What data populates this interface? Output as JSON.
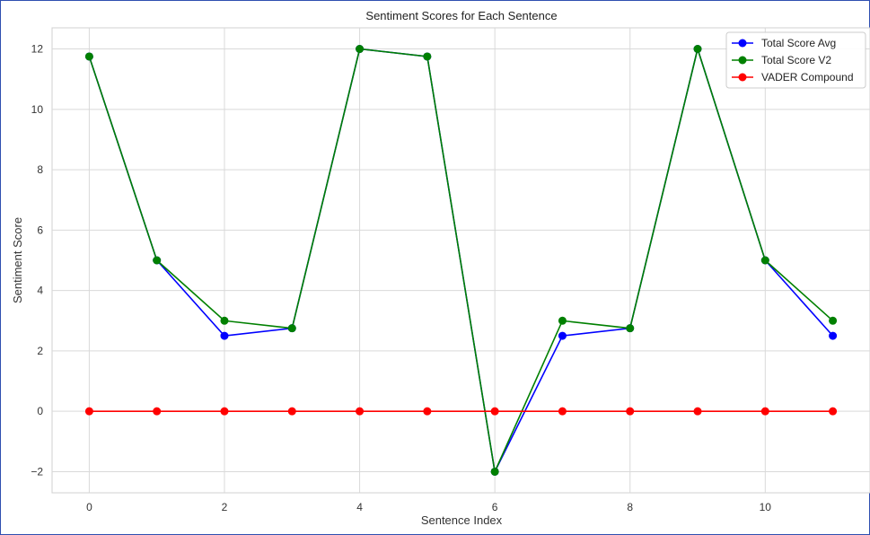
{
  "chart_data": {
    "type": "line",
    "title": "Sentiment Scores for Each Sentence",
    "xlabel": "Sentence Index",
    "ylabel": "Sentiment Score",
    "x": [
      0,
      1,
      2,
      3,
      4,
      5,
      6,
      7,
      8,
      9,
      10,
      11
    ],
    "xlim": [
      -0.55,
      11.55
    ],
    "ylim": [
      -2.7,
      12.7
    ],
    "xticks": [
      0,
      2,
      4,
      6,
      8,
      10
    ],
    "xtick_labels": [
      "0",
      "2",
      "4",
      "6",
      "8",
      "10"
    ],
    "yticks": [
      -2,
      0,
      2,
      4,
      6,
      8,
      10,
      12
    ],
    "ytick_labels": [
      "−2",
      "0",
      "2",
      "4",
      "6",
      "8",
      "10",
      "12"
    ],
    "grid": true,
    "legend_position": "top-right",
    "series": [
      {
        "name": "Total Score Avg",
        "color": "#0000ff",
        "values": [
          11.75,
          5,
          2.5,
          2.75,
          12,
          11.75,
          -2,
          2.5,
          2.75,
          12,
          5,
          2.5
        ]
      },
      {
        "name": "Total Score V2",
        "color": "#008000",
        "values": [
          11.75,
          5,
          3,
          2.75,
          12,
          11.75,
          -2,
          3,
          2.75,
          12,
          5,
          3
        ]
      },
      {
        "name": "VADER Compound",
        "color": "#ff0000",
        "values": [
          0,
          0,
          0,
          0,
          0,
          0,
          0,
          0,
          0,
          0,
          0,
          0
        ]
      }
    ]
  }
}
